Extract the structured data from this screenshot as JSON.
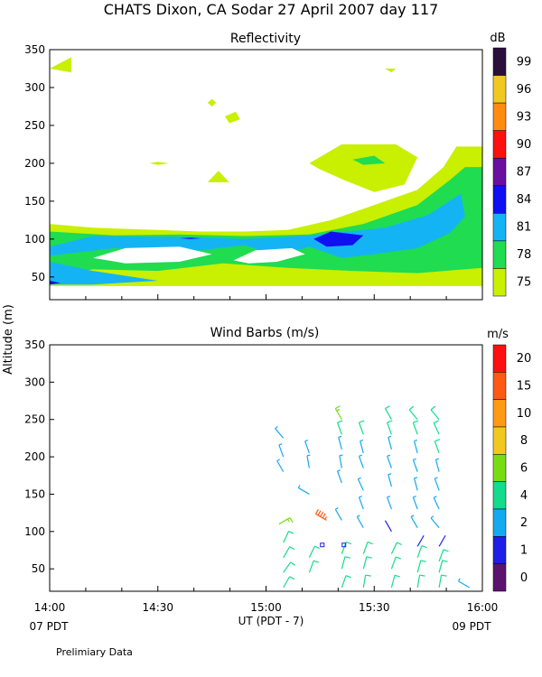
{
  "figure": {
    "title": "CHATS Dixon, CA  Sodar  27 April 2007  day 117",
    "ylabel": "Altitude (m)",
    "xlabel": "UT  (PDT - 7)",
    "left_pdt": "07 PDT",
    "right_pdt": "09 PDT",
    "footnote": "Prelimiary Data"
  },
  "chart_data": [
    {
      "type": "heatmap",
      "title": "Reflectivity",
      "ylim": [
        20,
        350
      ],
      "xlim": [
        "14:00",
        "16:00"
      ],
      "yticks": [
        50,
        100,
        150,
        200,
        250,
        300,
        350
      ],
      "colorbar": {
        "unit": "dB",
        "ticks": [
          "99",
          "96",
          "93",
          "90",
          "87",
          "84",
          "81",
          "78",
          "75"
        ],
        "colors": [
          "#2a0f3a",
          "#f0c820",
          "#ff8c10",
          "#ff1010",
          "#6a0fa0",
          "#1010f0",
          "#14b4f4",
          "#20dc50",
          "#c8f000"
        ]
      },
      "regions": [
        {
          "level": 75,
          "color": "#c8f000",
          "points": [
            [
              14.0,
              325
            ],
            [
              14.1,
              340
            ],
            [
              14.1,
              320
            ]
          ]
        },
        {
          "level": 75,
          "color": "#c8f000",
          "points": [
            [
              15.55,
              325
            ],
            [
              15.58,
              320
            ],
            [
              15.6,
              325
            ]
          ]
        },
        {
          "level": 75,
          "color": "#c8f000",
          "points": [
            [
              14.73,
              280
            ],
            [
              14.75,
              285
            ],
            [
              14.77,
              280
            ],
            [
              14.75,
              275
            ]
          ]
        },
        {
          "level": 75,
          "color": "#c8f000",
          "points": [
            [
              14.81,
              262
            ],
            [
              14.86,
              268
            ],
            [
              14.88,
              258
            ],
            [
              14.83,
              253
            ]
          ]
        },
        {
          "level": 75,
          "color": "#c8f000",
          "points": [
            [
              14.46,
              200
            ],
            [
              14.5,
              202
            ],
            [
              14.55,
              200
            ],
            [
              14.5,
              198
            ]
          ]
        },
        {
          "level": 75,
          "color": "#c8f000",
          "points": [
            [
              14.73,
              175
            ],
            [
              14.78,
              190
            ],
            [
              14.83,
              175
            ]
          ]
        },
        {
          "level": 75,
          "color": "#c8f000",
          "points": [
            [
              15.2,
              200
            ],
            [
              15.35,
              225
            ],
            [
              15.6,
              225
            ],
            [
              15.7,
              208
            ],
            [
              15.64,
              172
            ],
            [
              15.5,
              162
            ],
            [
              15.36,
              178
            ],
            [
              15.25,
              192
            ]
          ]
        },
        {
          "level": 75,
          "color": "#c8f000",
          "points": [
            [
              14.0,
              120
            ],
            [
              14.2,
              115
            ],
            [
              14.5,
              112
            ],
            [
              14.7,
              110
            ],
            [
              14.9,
              110
            ],
            [
              15.1,
              112
            ],
            [
              15.3,
              125
            ],
            [
              15.5,
              145
            ],
            [
              15.7,
              165
            ],
            [
              15.82,
              195
            ],
            [
              15.88,
              222
            ],
            [
              16.0,
              222
            ],
            [
              16.0,
              38
            ],
            [
              14.0,
              38
            ]
          ]
        },
        {
          "level": 78,
          "color": "#20dc50",
          "points": [
            [
              15.4,
              205
            ],
            [
              15.5,
              210
            ],
            [
              15.55,
              200
            ],
            [
              15.45,
              198
            ]
          ]
        },
        {
          "level": 78,
          "color": "#20dc50",
          "points": [
            [
              14.0,
              110
            ],
            [
              14.3,
              105
            ],
            [
              14.6,
              106
            ],
            [
              14.9,
              104
            ],
            [
              15.2,
              106
            ],
            [
              15.45,
              120
            ],
            [
              15.7,
              145
            ],
            [
              15.85,
              178
            ],
            [
              15.92,
              195
            ],
            [
              16.0,
              195
            ],
            [
              16.0,
              62
            ],
            [
              15.7,
              55
            ],
            [
              15.4,
              58
            ],
            [
              15.1,
              62
            ],
            [
              14.8,
              68
            ],
            [
              14.5,
              58
            ],
            [
              14.2,
              60
            ],
            [
              14.0,
              52
            ]
          ]
        },
        {
          "level": 81,
          "color": "#14b4f4",
          "points": [
            [
              14.0,
              90
            ],
            [
              14.2,
              104
            ],
            [
              14.6,
              103
            ],
            [
              14.9,
              100
            ],
            [
              15.2,
              105
            ],
            [
              15.55,
              115
            ],
            [
              15.75,
              132
            ],
            [
              15.9,
              160
            ],
            [
              15.92,
              130
            ],
            [
              15.85,
              108
            ],
            [
              15.7,
              88
            ],
            [
              15.5,
              80
            ],
            [
              15.35,
              75
            ],
            [
              15.2,
              90
            ],
            [
              15.05,
              78
            ],
            [
              14.9,
              92
            ],
            [
              14.6,
              82
            ],
            [
              14.3,
              88
            ],
            [
              14.0,
              78
            ]
          ]
        },
        {
          "level": 81,
          "color": "#14b4f4",
          "points": [
            [
              14.0,
              70
            ],
            [
              14.2,
              58
            ],
            [
              14.5,
              45
            ],
            [
              14.2,
              40
            ],
            [
              14.0,
              40
            ]
          ]
        },
        {
          "level": 84,
          "color": "#1010f0",
          "points": [
            [
              15.22,
              100
            ],
            [
              15.3,
              110
            ],
            [
              15.45,
              105
            ],
            [
              15.4,
              92
            ],
            [
              15.28,
              90
            ]
          ]
        },
        {
          "level": 84,
          "color": "#1010f0",
          "points": [
            [
              14.6,
              101
            ],
            [
              14.65,
              102
            ],
            [
              14.7,
              101
            ],
            [
              14.65,
              100
            ]
          ]
        },
        {
          "level": 84,
          "color": "#1010f0",
          "points": [
            [
              14.0,
              45
            ],
            [
              14.05,
              42
            ],
            [
              14.0,
              40
            ]
          ]
        },
        {
          "level": 0,
          "color": "#ffffff",
          "points": [
            [
              14.2,
              75
            ],
            [
              14.35,
              88
            ],
            [
              14.6,
              90
            ],
            [
              14.75,
              80
            ],
            [
              14.6,
              70
            ],
            [
              14.35,
              68
            ]
          ]
        },
        {
          "level": 0,
          "color": "#ffffff",
          "points": [
            [
              14.85,
              72
            ],
            [
              14.95,
              85
            ],
            [
              15.12,
              88
            ],
            [
              15.18,
              80
            ],
            [
              15.05,
              70
            ],
            [
              14.92,
              68
            ]
          ]
        }
      ]
    },
    {
      "type": "scatter",
      "title": "Wind Barbs (m/s)",
      "ylabel": "Altitude (m)",
      "xlabel": "UT  (PDT - 7)",
      "ylim": [
        20,
        350
      ],
      "xlim": [
        "14:00",
        "16:00"
      ],
      "xticks": [
        "14:00",
        "14:30",
        "15:00",
        "15:30",
        "16:00"
      ],
      "yticks": [
        50,
        100,
        150,
        200,
        250,
        300,
        350
      ],
      "colorbar": {
        "unit": "m/s",
        "ticks": [
          "20",
          "15",
          "10",
          "8",
          "6",
          "4",
          "2",
          "1",
          "0"
        ],
        "colors": [
          "#ff1010",
          "#ff5a14",
          "#ff9a14",
          "#f0c820",
          "#78dc14",
          "#14dc8c",
          "#14aaf0",
          "#1e1ee6",
          "#5a146e"
        ]
      },
      "barbs": [
        {
          "time": 15.08,
          "alt": 25,
          "speed": 5,
          "dir": 30
        },
        {
          "time": 15.08,
          "alt": 45,
          "speed": 5,
          "dir": 35
        },
        {
          "time": 15.08,
          "alt": 65,
          "speed": 5,
          "dir": 30
        },
        {
          "time": 15.08,
          "alt": 85,
          "speed": 5,
          "dir": 25
        },
        {
          "time": 15.06,
          "alt": 110,
          "speed": 6,
          "dir": 60
        },
        {
          "time": 15.08,
          "alt": 180,
          "speed": 3,
          "dir": 330
        },
        {
          "time": 15.08,
          "alt": 200,
          "speed": 3,
          "dir": 340
        },
        {
          "time": 15.08,
          "alt": 225,
          "speed": 3,
          "dir": 320
        },
        {
          "time": 15.2,
          "alt": 45,
          "speed": 4,
          "dir": 20
        },
        {
          "time": 15.2,
          "alt": 65,
          "speed": 4,
          "dir": 25
        },
        {
          "time": 15.2,
          "alt": 150,
          "speed": 2,
          "dir": 300
        },
        {
          "time": 15.2,
          "alt": 185,
          "speed": 3,
          "dir": 350
        },
        {
          "time": 15.2,
          "alt": 205,
          "speed": 3,
          "dir": 340
        },
        {
          "time": 15.28,
          "alt": 115,
          "speed": 18,
          "dir": 300
        },
        {
          "time": 15.26,
          "alt": 82,
          "speed": 1,
          "dir": 0
        },
        {
          "time": 15.35,
          "alt": 25,
          "speed": 4,
          "dir": 20
        },
        {
          "time": 15.35,
          "alt": 50,
          "speed": 4,
          "dir": 15
        },
        {
          "time": 15.35,
          "alt": 70,
          "speed": 4,
          "dir": 20
        },
        {
          "time": 15.35,
          "alt": 115,
          "speed": 3,
          "dir": 330
        },
        {
          "time": 15.35,
          "alt": 165,
          "speed": 3,
          "dir": 340
        },
        {
          "time": 15.35,
          "alt": 185,
          "speed": 3,
          "dir": 350
        },
        {
          "time": 15.35,
          "alt": 210,
          "speed": 3,
          "dir": 345
        },
        {
          "time": 15.35,
          "alt": 230,
          "speed": 5,
          "dir": 340
        },
        {
          "time": 15.35,
          "alt": 250,
          "speed": 6,
          "dir": 330
        },
        {
          "time": 15.45,
          "alt": 25,
          "speed": 4,
          "dir": 10
        },
        {
          "time": 15.45,
          "alt": 50,
          "speed": 4,
          "dir": 15
        },
        {
          "time": 15.45,
          "alt": 70,
          "speed": 4,
          "dir": 20
        },
        {
          "time": 15.45,
          "alt": 105,
          "speed": 3,
          "dir": 330
        },
        {
          "time": 15.45,
          "alt": 130,
          "speed": 3,
          "dir": 340
        },
        {
          "time": 15.45,
          "alt": 155,
          "speed": 3,
          "dir": 335
        },
        {
          "time": 15.45,
          "alt": 185,
          "speed": 3,
          "dir": 340
        },
        {
          "time": 15.45,
          "alt": 205,
          "speed": 3,
          "dir": 345
        },
        {
          "time": 15.45,
          "alt": 230,
          "speed": 5,
          "dir": 340
        },
        {
          "time": 15.36,
          "alt": 82,
          "speed": 1,
          "dir": 0
        },
        {
          "time": 15.58,
          "alt": 25,
          "speed": 4,
          "dir": 15
        },
        {
          "time": 15.58,
          "alt": 50,
          "speed": 4,
          "dir": 20
        },
        {
          "time": 15.58,
          "alt": 70,
          "speed": 4,
          "dir": 25
        },
        {
          "time": 15.58,
          "alt": 100,
          "speed": 1,
          "dir": 330
        },
        {
          "time": 15.58,
          "alt": 130,
          "speed": 2,
          "dir": 340
        },
        {
          "time": 15.58,
          "alt": 160,
          "speed": 3,
          "dir": 345
        },
        {
          "time": 15.58,
          "alt": 185,
          "speed": 3,
          "dir": 340
        },
        {
          "time": 15.58,
          "alt": 210,
          "speed": 3,
          "dir": 345
        },
        {
          "time": 15.58,
          "alt": 230,
          "speed": 4,
          "dir": 340
        },
        {
          "time": 15.58,
          "alt": 250,
          "speed": 5,
          "dir": 330
        },
        {
          "time": 15.7,
          "alt": 25,
          "speed": 4,
          "dir": 10
        },
        {
          "time": 15.7,
          "alt": 45,
          "speed": 4,
          "dir": 15
        },
        {
          "time": 15.7,
          "alt": 65,
          "speed": 4,
          "dir": 20
        },
        {
          "time": 15.7,
          "alt": 80,
          "speed": 1,
          "dir": 30
        },
        {
          "time": 15.7,
          "alt": 105,
          "speed": 2,
          "dir": 330
        },
        {
          "time": 15.7,
          "alt": 130,
          "speed": 3,
          "dir": 340
        },
        {
          "time": 15.7,
          "alt": 155,
          "speed": 3,
          "dir": 345
        },
        {
          "time": 15.7,
          "alt": 180,
          "speed": 3,
          "dir": 340
        },
        {
          "time": 15.7,
          "alt": 205,
          "speed": 3,
          "dir": 345
        },
        {
          "time": 15.7,
          "alt": 230,
          "speed": 4,
          "dir": 340
        },
        {
          "time": 15.7,
          "alt": 250,
          "speed": 5,
          "dir": 320
        },
        {
          "time": 15.8,
          "alt": 25,
          "speed": 5,
          "dir": 10
        },
        {
          "time": 15.8,
          "alt": 45,
          "speed": 4,
          "dir": 15
        },
        {
          "time": 15.8,
          "alt": 60,
          "speed": 4,
          "dir": 20
        },
        {
          "time": 15.8,
          "alt": 80,
          "speed": 1,
          "dir": 30
        },
        {
          "time": 15.8,
          "alt": 105,
          "speed": 2,
          "dir": 320
        },
        {
          "time": 15.8,
          "alt": 130,
          "speed": 3,
          "dir": 335
        },
        {
          "time": 15.8,
          "alt": 155,
          "speed": 3,
          "dir": 340
        },
        {
          "time": 15.8,
          "alt": 180,
          "speed": 3,
          "dir": 345
        },
        {
          "time": 15.8,
          "alt": 205,
          "speed": 5,
          "dir": 340
        },
        {
          "time": 15.8,
          "alt": 230,
          "speed": 5,
          "dir": 335
        },
        {
          "time": 15.8,
          "alt": 250,
          "speed": 5,
          "dir": 320
        },
        {
          "time": 15.94,
          "alt": 25,
          "speed": 3,
          "dir": 300
        }
      ]
    }
  ]
}
